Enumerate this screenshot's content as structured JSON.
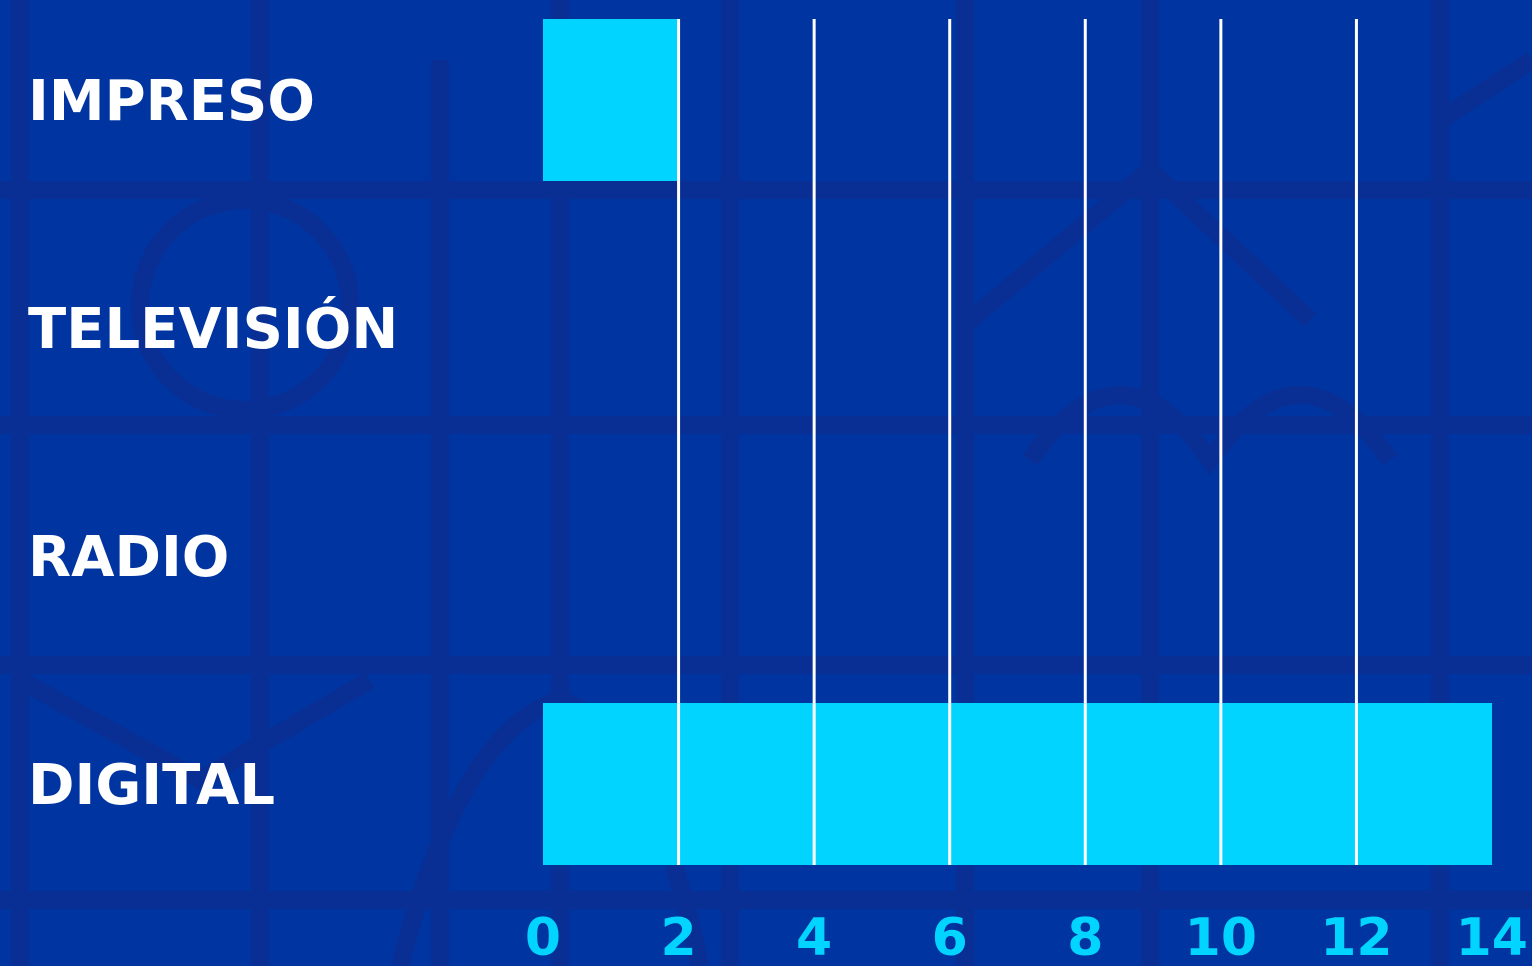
{
  "colors": {
    "background": "#0034a0",
    "pattern": "#0a2f94",
    "bar": "#00d4ff",
    "gridline": "#ffffff",
    "category_label": "#ffffff",
    "tick_label": "#00d4ff"
  },
  "chart_data": {
    "type": "bar",
    "orientation": "horizontal",
    "categories": [
      "IMPRESO",
      "TELEVISIÓN",
      "RADIO",
      "DIGITAL"
    ],
    "values": [
      2,
      0,
      0,
      14
    ],
    "xlim": [
      0,
      14
    ],
    "x_ticks": [
      0,
      2,
      4,
      6,
      8,
      10,
      12,
      14
    ],
    "x_tick_labels": [
      "0",
      "2",
      "4",
      "6",
      "8",
      "10",
      "12",
      "14"
    ],
    "grid": "vertical lines at ticks 2–12",
    "title": "",
    "xlabel": "",
    "ylabel": "",
    "legend": "none"
  }
}
